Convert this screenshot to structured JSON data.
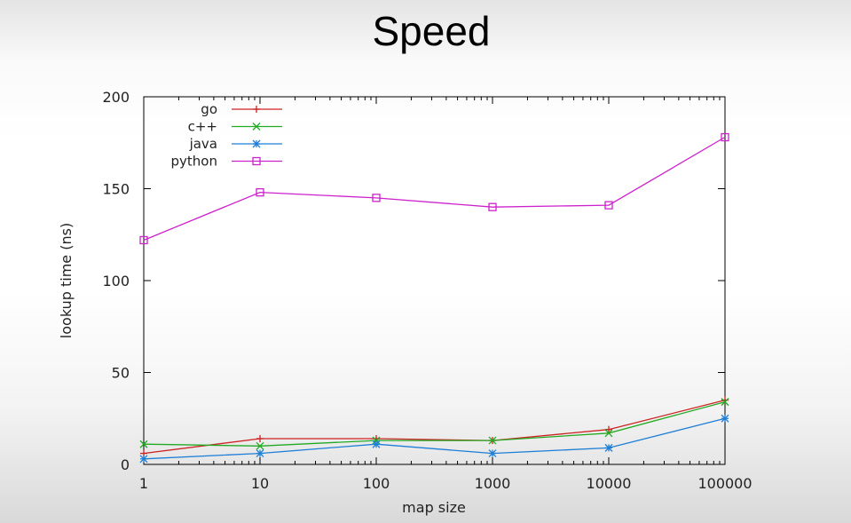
{
  "slide": {
    "title": "Speed"
  },
  "chart_data": {
    "type": "line",
    "title": "Speed",
    "xlabel": "map size",
    "ylabel": "lookup time (ns)",
    "x_scale": "log",
    "categories": [
      "1",
      "10",
      "100",
      "1000",
      "10000",
      "100000"
    ],
    "x": [
      1,
      10,
      100,
      1000,
      10000,
      100000
    ],
    "ylim": [
      0,
      200
    ],
    "yticks": [
      0,
      50,
      100,
      150,
      200
    ],
    "legend_position": "top-left",
    "grid": false,
    "series": [
      {
        "name": "go",
        "marker": "plus",
        "color": "#cc2222",
        "values": [
          6,
          14,
          14,
          13,
          19,
          35
        ]
      },
      {
        "name": "c++",
        "marker": "x",
        "color": "#22aa22",
        "values": [
          11,
          10,
          13,
          13,
          17,
          34
        ]
      },
      {
        "name": "java",
        "marker": "star",
        "color": "#1f7fd6",
        "values": [
          3,
          6,
          11,
          6,
          9,
          25
        ]
      },
      {
        "name": "python",
        "marker": "square",
        "color": "#cc22cc",
        "values": [
          122,
          148,
          145,
          140,
          141,
          178
        ]
      }
    ]
  }
}
